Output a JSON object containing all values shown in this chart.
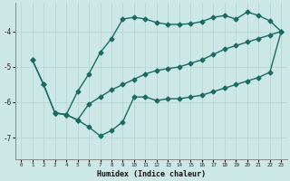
{
  "xlabel": "Humidex (Indice chaleur)",
  "bg_color": "#cce8e6",
  "line_color": "#1a6b62",
  "grid_color": "#b8d8d5",
  "xlim": [
    -0.5,
    23.5
  ],
  "ylim": [
    -7.6,
    -3.2
  ],
  "yticks": [
    -7,
    -6,
    -5,
    -4
  ],
  "xticks": [
    0,
    1,
    2,
    3,
    4,
    5,
    6,
    7,
    8,
    9,
    10,
    11,
    12,
    13,
    14,
    15,
    16,
    17,
    18,
    19,
    20,
    21,
    22,
    23
  ],
  "line1_x": [
    1,
    2,
    3,
    4,
    5,
    6,
    7,
    8,
    9,
    10,
    11,
    12,
    13,
    14,
    15,
    16,
    17,
    18,
    19,
    20,
    21,
    22,
    23
  ],
  "line1_y": [
    -4.8,
    -5.5,
    -6.3,
    -6.35,
    -6.5,
    -6.7,
    -6.95,
    -6.8,
    -6.55,
    -5.85,
    -5.85,
    -5.95,
    -5.9,
    -5.9,
    -5.85,
    -5.8,
    -5.7,
    -5.6,
    -5.5,
    -5.4,
    -5.3,
    -5.15,
    -4.0
  ],
  "line2_x": [
    1,
    2,
    3,
    4,
    5,
    6,
    7,
    8,
    9,
    10,
    11,
    12,
    13,
    14,
    15,
    16,
    17,
    18,
    19,
    20,
    21,
    22,
    23
  ],
  "line2_y": [
    -4.8,
    -5.5,
    -6.3,
    -6.35,
    -5.7,
    -5.2,
    -4.6,
    -4.2,
    -3.65,
    -3.6,
    -3.65,
    -3.75,
    -3.8,
    -3.8,
    -3.78,
    -3.72,
    -3.6,
    -3.55,
    -3.65,
    -3.45,
    -3.55,
    -3.7,
    -4.0
  ],
  "line3_x": [
    3,
    4,
    5,
    6,
    7,
    8,
    9,
    10,
    11,
    12,
    13,
    14,
    15,
    16,
    17,
    18,
    19,
    20,
    21,
    22,
    23
  ],
  "line3_y": [
    -6.3,
    -6.35,
    -6.5,
    -6.05,
    -5.85,
    -5.65,
    -5.5,
    -5.35,
    -5.2,
    -5.1,
    -5.05,
    -5.0,
    -4.9,
    -4.8,
    -4.65,
    -4.5,
    -4.4,
    -4.3,
    -4.2,
    -4.1,
    -4.0
  ],
  "marker": "D",
  "markersize": 2.5,
  "linewidth": 1.0
}
